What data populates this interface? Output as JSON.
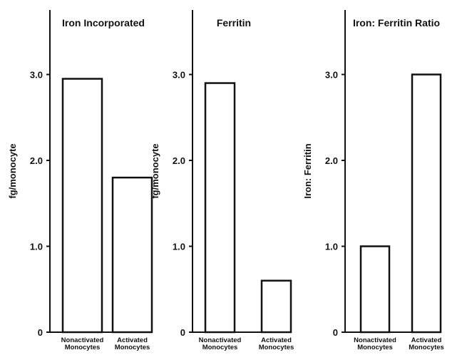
{
  "chart_data": [
    {
      "type": "bar",
      "title": "Iron Incorporated",
      "ylabel": "fg/monocyte",
      "xlabel": "",
      "categories": [
        [
          "Nonactivated",
          "Monocytes"
        ],
        [
          "Activated",
          "Monocytes"
        ]
      ],
      "values": [
        2.95,
        1.8
      ],
      "ylim": [
        0,
        3.7
      ],
      "yticks": [
        {
          "value": 0,
          "label": "0"
        },
        {
          "value": 1.0,
          "label": "1.0"
        },
        {
          "value": 2.0,
          "label": "2.0"
        },
        {
          "value": 3.0,
          "label": "3.0"
        }
      ],
      "grid": false
    },
    {
      "type": "bar",
      "title": "Ferritin",
      "ylabel": "fg/monocyte",
      "xlabel": "",
      "categories": [
        [
          "Nonactivated",
          "Monocytes"
        ],
        [
          "Activated",
          "Monocytes"
        ]
      ],
      "values": [
        2.9,
        0.6
      ],
      "ylim": [
        0,
        3.7
      ],
      "yticks": [
        {
          "value": 0,
          "label": "0"
        },
        {
          "value": 1.0,
          "label": "1.0"
        },
        {
          "value": 2.0,
          "label": "2.0"
        },
        {
          "value": 3.0,
          "label": "3.0"
        }
      ],
      "grid": false
    },
    {
      "type": "bar",
      "title": "Iron: Ferritin Ratio",
      "ylabel": "Iron: Ferritin",
      "xlabel": "",
      "categories": [
        [
          "Nonactivated",
          "Monocytes"
        ],
        [
          "Activated",
          "Monocytes"
        ]
      ],
      "values": [
        1.0,
        3.0
      ],
      "ylim": [
        0,
        3.7
      ],
      "yticks": [
        {
          "value": 0,
          "label": "0"
        },
        {
          "value": 1.0,
          "label": "1.0"
        },
        {
          "value": 2.0,
          "label": "2.0"
        },
        {
          "value": 3.0,
          "label": "3.0"
        }
      ],
      "grid": false
    }
  ],
  "colors": {
    "ink": "#111111",
    "bar_fill": "#ffffff",
    "background": "#ffffff"
  }
}
